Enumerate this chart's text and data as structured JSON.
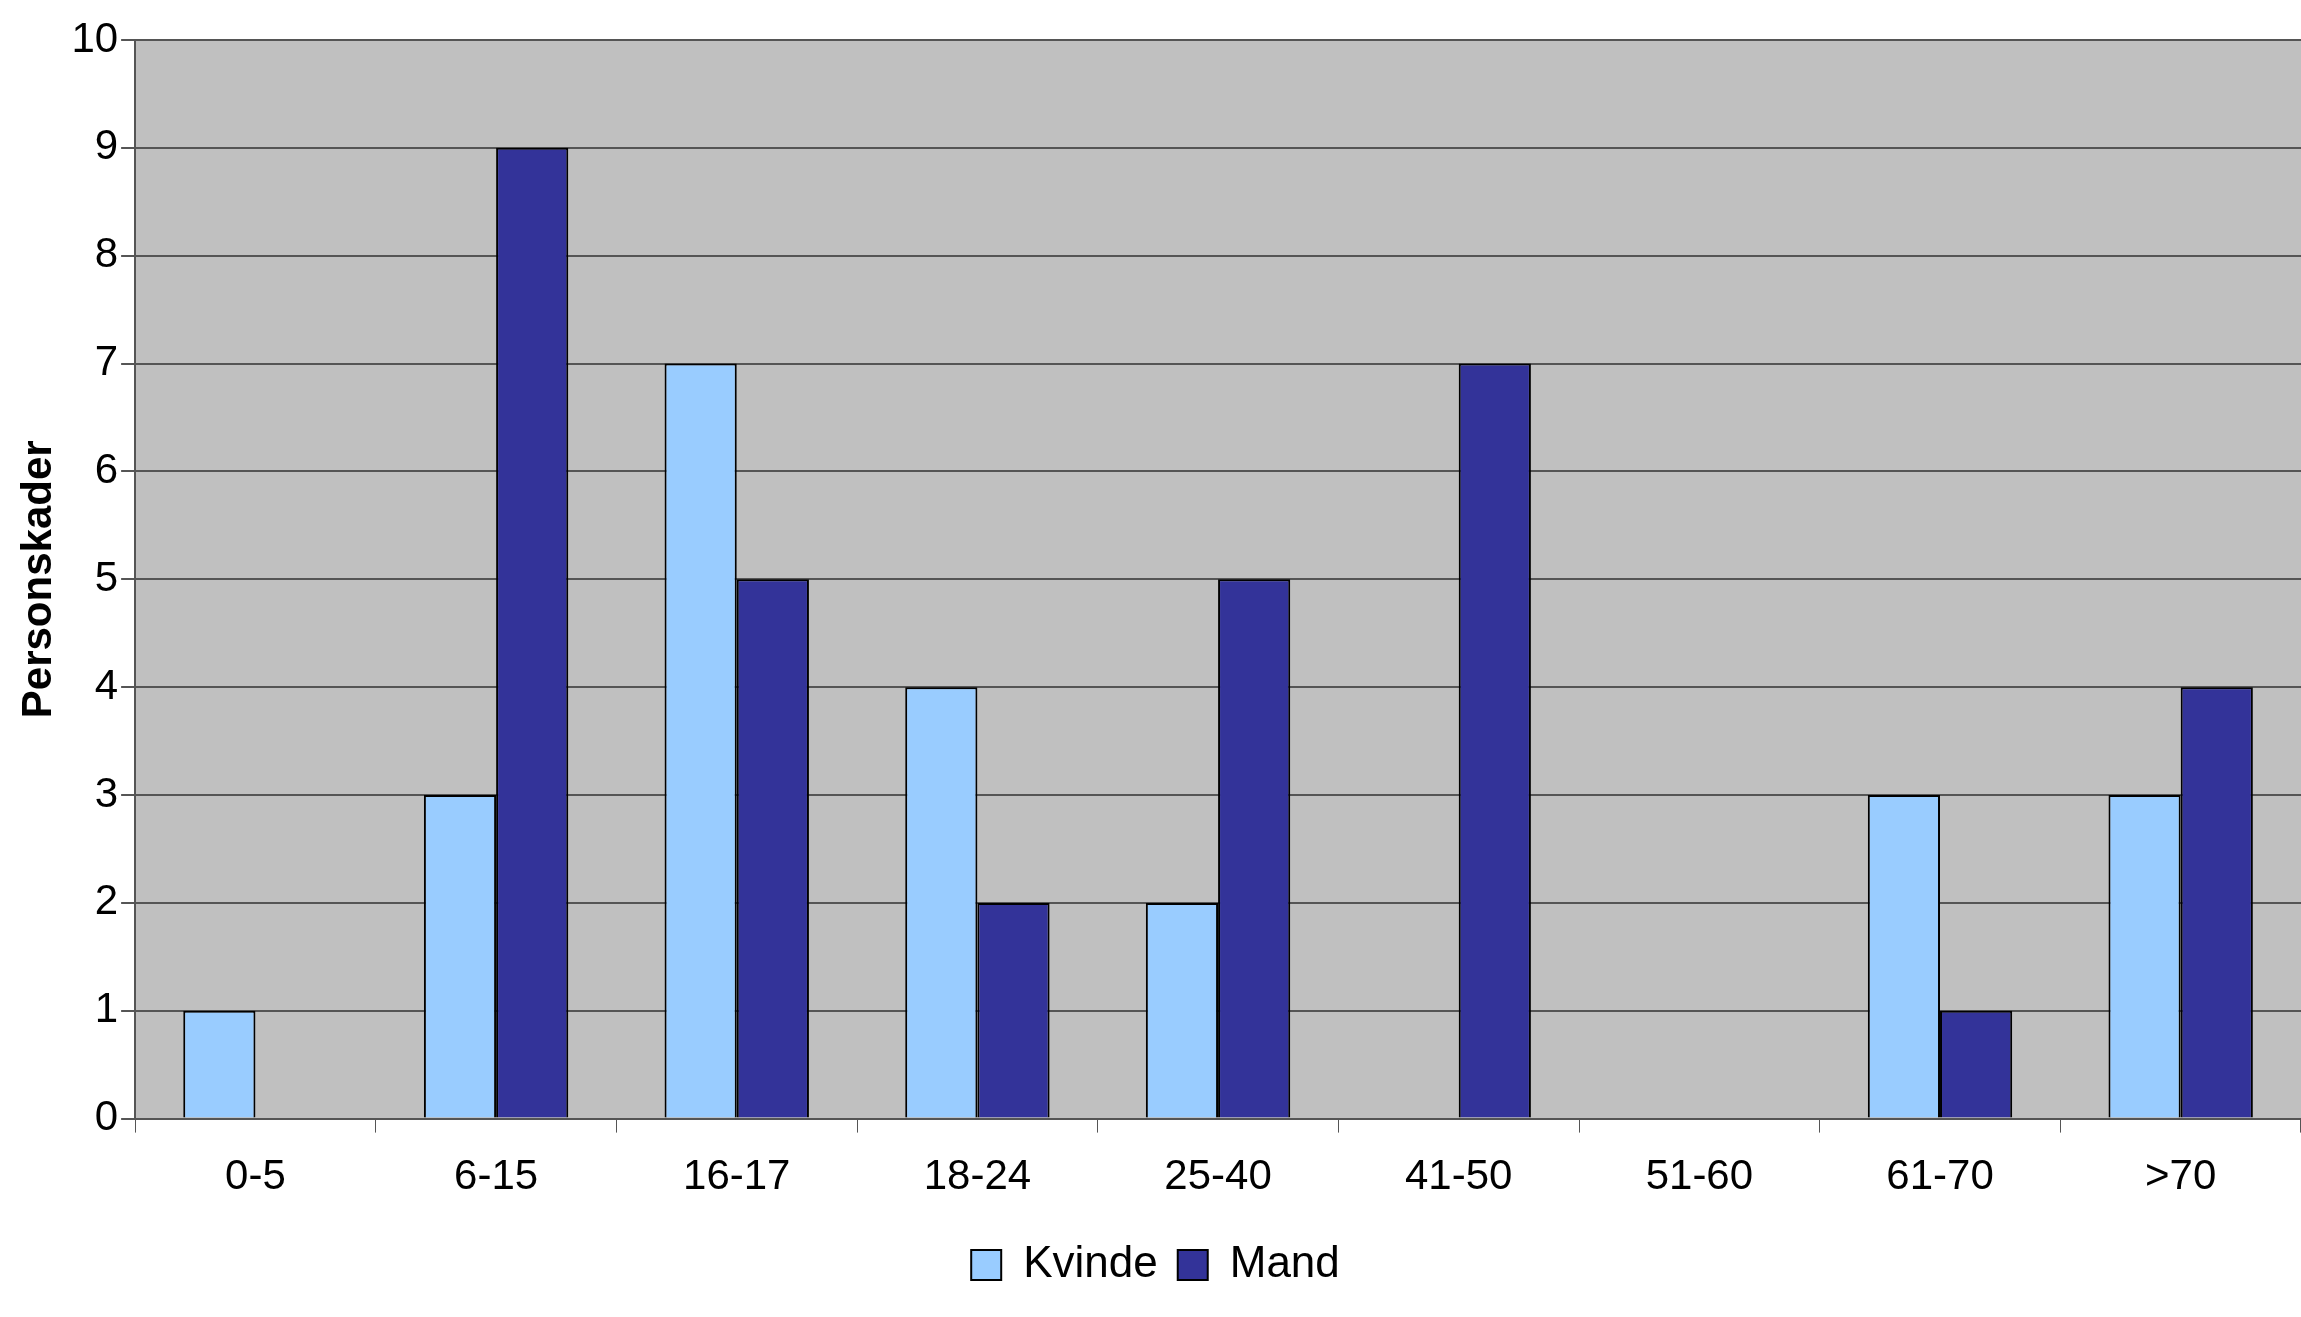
{
  "chart_data": {
    "type": "bar",
    "ylabel": "Personskader",
    "categories": [
      "0-5",
      "6-15",
      "16-17",
      "18-24",
      "25-40",
      "41-50",
      "51-60",
      "61-70",
      ">70"
    ],
    "series": [
      {
        "name": "Kvinde",
        "color": "#99ccff",
        "values": [
          1,
          3,
          7,
          4,
          2,
          0,
          0,
          3,
          3
        ]
      },
      {
        "name": "Mand",
        "color": "#333399",
        "values": [
          0,
          9,
          5,
          2,
          5,
          7,
          0,
          1,
          4
        ]
      }
    ],
    "ylim": [
      0,
      10
    ],
    "yticks": [
      0,
      1,
      2,
      3,
      4,
      5,
      6,
      7,
      8,
      9,
      10
    ],
    "grid": "y",
    "legend": "bottom"
  }
}
